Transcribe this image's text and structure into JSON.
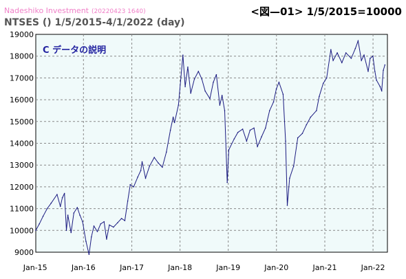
{
  "header": {
    "brand": "Nadeshiko Investment",
    "stamp": "(20220423 1640)",
    "figure_label": "<図—01> 1/5/2015=10000",
    "subtitle": "NTSES () 1/5/2015-4/1/2022 (day)"
  },
  "colors": {
    "background": "#ffffff",
    "plot_background": "#f0fafa",
    "grid": "#888888",
    "line": "#1a1a80",
    "brand": "#f080c8",
    "inner_title": "#2222a0"
  },
  "chart_data": {
    "type": "line",
    "title": "C データの説明",
    "xlabel": "",
    "ylabel": "",
    "ylim": [
      9000,
      19000
    ],
    "xlim": [
      "2015-01-05",
      "2022-04-20"
    ],
    "grid": true,
    "yticks": [
      9000,
      10000,
      11000,
      12000,
      13000,
      14000,
      15000,
      16000,
      17000,
      18000,
      19000
    ],
    "xticks": [
      {
        "label": "Jan-15",
        "date": "2015-01-01"
      },
      {
        "label": "Jan-16",
        "date": "2016-01-01"
      },
      {
        "label": "Jan-17",
        "date": "2017-01-01"
      },
      {
        "label": "Jan-18",
        "date": "2018-01-01"
      },
      {
        "label": "Jan-19",
        "date": "2019-01-01"
      },
      {
        "label": "Jan-20",
        "date": "2020-01-01"
      },
      {
        "label": "Jan-21",
        "date": "2021-01-01"
      },
      {
        "label": "Jan-22",
        "date": "2022-01-01"
      }
    ],
    "series": [
      {
        "points": [
          [
            "2015-01-05",
            10000
          ],
          [
            "2015-02-01",
            10300
          ],
          [
            "2015-03-01",
            10650
          ],
          [
            "2015-04-01",
            11000
          ],
          [
            "2015-05-01",
            11250
          ],
          [
            "2015-06-15",
            11650
          ],
          [
            "2015-07-10",
            11100
          ],
          [
            "2015-07-25",
            11500
          ],
          [
            "2015-08-10",
            11700
          ],
          [
            "2015-08-25",
            10000
          ],
          [
            "2015-09-05",
            10700
          ],
          [
            "2015-09-29",
            9900
          ],
          [
            "2015-10-20",
            10800
          ],
          [
            "2015-11-15",
            11050
          ],
          [
            "2015-12-05",
            10700
          ],
          [
            "2015-12-25",
            10400
          ],
          [
            "2016-01-20",
            9500
          ],
          [
            "2016-02-12",
            8900
          ],
          [
            "2016-03-01",
            9700
          ],
          [
            "2016-03-20",
            10200
          ],
          [
            "2016-04-15",
            9950
          ],
          [
            "2016-05-10",
            10300
          ],
          [
            "2016-06-05",
            10400
          ],
          [
            "2016-06-24",
            9600
          ],
          [
            "2016-07-15",
            10250
          ],
          [
            "2016-08-15",
            10150
          ],
          [
            "2016-09-15",
            10350
          ],
          [
            "2016-10-15",
            10550
          ],
          [
            "2016-11-09",
            10450
          ],
          [
            "2016-12-01",
            11350
          ],
          [
            "2016-12-20",
            12100
          ],
          [
            "2017-01-15",
            12000
          ],
          [
            "2017-02-15",
            12450
          ],
          [
            "2017-03-10",
            12750
          ],
          [
            "2017-03-20",
            13150
          ],
          [
            "2017-04-15",
            12400
          ],
          [
            "2017-05-15",
            12950
          ],
          [
            "2017-06-20",
            13350
          ],
          [
            "2017-07-20",
            13100
          ],
          [
            "2017-08-20",
            12900
          ],
          [
            "2017-09-20",
            13600
          ],
          [
            "2017-10-20",
            14600
          ],
          [
            "2017-11-10",
            15200
          ],
          [
            "2017-11-20",
            14950
          ],
          [
            "2017-12-20",
            15750
          ],
          [
            "2018-01-23",
            18050
          ],
          [
            "2018-02-09",
            16600
          ],
          [
            "2018-03-01",
            17500
          ],
          [
            "2018-03-23",
            16300
          ],
          [
            "2018-04-20",
            16950
          ],
          [
            "2018-05-20",
            17300
          ],
          [
            "2018-06-15",
            16950
          ],
          [
            "2018-07-10",
            16400
          ],
          [
            "2018-08-15",
            16050
          ],
          [
            "2018-09-10",
            16800
          ],
          [
            "2018-10-03",
            17150
          ],
          [
            "2018-10-29",
            15750
          ],
          [
            "2018-11-15",
            16200
          ],
          [
            "2018-12-05",
            15500
          ],
          [
            "2018-12-24",
            12200
          ],
          [
            "2019-01-05",
            13700
          ],
          [
            "2019-02-15",
            14200
          ],
          [
            "2019-03-15",
            14500
          ],
          [
            "2019-04-20",
            14650
          ],
          [
            "2019-05-20",
            14100
          ],
          [
            "2019-06-15",
            14600
          ],
          [
            "2019-07-15",
            14700
          ],
          [
            "2019-08-10",
            13850
          ],
          [
            "2019-09-10",
            14300
          ],
          [
            "2019-10-10",
            14700
          ],
          [
            "2019-11-10",
            15500
          ],
          [
            "2019-12-10",
            15900
          ],
          [
            "2019-12-31",
            16500
          ],
          [
            "2020-01-20",
            16800
          ],
          [
            "2020-02-20",
            16250
          ],
          [
            "2020-03-10",
            14100
          ],
          [
            "2020-03-23",
            11150
          ],
          [
            "2020-04-10",
            12400
          ],
          [
            "2020-05-10",
            12950
          ],
          [
            "2020-06-10",
            14250
          ],
          [
            "2020-07-15",
            14450
          ],
          [
            "2020-08-15",
            14850
          ],
          [
            "2020-09-15",
            15200
          ],
          [
            "2020-10-30",
            15500
          ],
          [
            "2020-11-20",
            16150
          ],
          [
            "2020-12-20",
            16750
          ],
          [
            "2021-01-15",
            17000
          ],
          [
            "2021-02-16",
            18300
          ],
          [
            "2021-03-05",
            17800
          ],
          [
            "2021-04-05",
            18150
          ],
          [
            "2021-05-10",
            17700
          ],
          [
            "2021-06-10",
            18150
          ],
          [
            "2021-07-20",
            17900
          ],
          [
            "2021-08-20",
            18350
          ],
          [
            "2021-09-10",
            18700
          ],
          [
            "2021-10-05",
            17800
          ],
          [
            "2021-10-25",
            18050
          ],
          [
            "2021-11-25",
            17300
          ],
          [
            "2021-12-10",
            17900
          ],
          [
            "2021-12-31",
            18000
          ],
          [
            "2022-01-15",
            17300
          ],
          [
            "2022-01-27",
            16900
          ],
          [
            "2022-02-24",
            16600
          ],
          [
            "2022-03-08",
            16400
          ],
          [
            "2022-03-20",
            17350
          ],
          [
            "2022-04-01",
            17600
          ]
        ]
      }
    ]
  }
}
